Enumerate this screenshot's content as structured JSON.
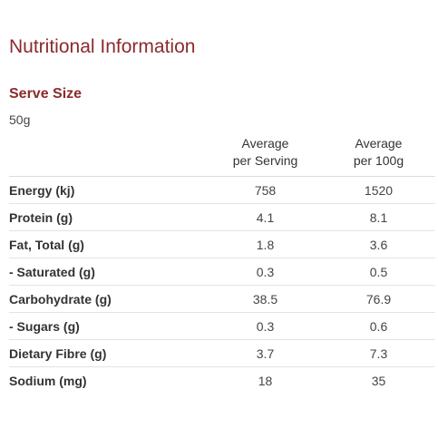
{
  "title": "Nutritional Information",
  "serve_size": {
    "heading": "Serve Size",
    "value": "50g"
  },
  "table": {
    "headers": {
      "per_serving": [
        "Average",
        "per Serving"
      ],
      "per_100g": [
        "Average",
        "per 100g"
      ]
    },
    "rows": [
      {
        "name": "Energy (kj)",
        "per_serving": "758",
        "per_100g": "1520"
      },
      {
        "name": "Protein (g)",
        "per_serving": "4.1",
        "per_100g": "8.1"
      },
      {
        "name": "Fat, Total (g)",
        "per_serving": "1.8",
        "per_100g": "3.6"
      },
      {
        "name": "- Saturated (g)",
        "per_serving": "0.3",
        "per_100g": "0.5"
      },
      {
        "name": "Carbohydrate (g)",
        "per_serving": "38.5",
        "per_100g": "76.9"
      },
      {
        "name": "- Sugars (g)",
        "per_serving": "0.3",
        "per_100g": "0.6"
      },
      {
        "name": "Dietary Fibre (g)",
        "per_serving": "3.7",
        "per_100g": "7.3"
      },
      {
        "name": "Sodium (mg)",
        "per_serving": "18",
        "per_100g": "35"
      }
    ]
  }
}
